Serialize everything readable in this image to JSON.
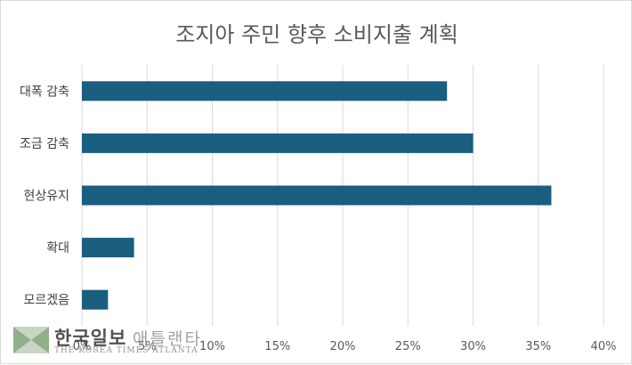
{
  "chart_data": {
    "type": "bar",
    "orientation": "horizontal",
    "title": "조지아 주민 향후 소비지출 계획",
    "categories": [
      "대폭 감축",
      "조금 감축",
      "현상유지",
      "확대",
      "모르겠음"
    ],
    "values": [
      28,
      30,
      36,
      4,
      2
    ],
    "xlim": [
      0,
      40
    ],
    "x_ticks": [
      "0%",
      "5%",
      "10%",
      "15%",
      "20%",
      "25%",
      "30%",
      "35%",
      "40%"
    ],
    "grid": true,
    "bar_color": "#1a5e80"
  },
  "watermark": {
    "name_bold": "한국일보",
    "name_light": "애틀랜타",
    "name_en": "THE KOREA TIMES ATLANTA"
  }
}
